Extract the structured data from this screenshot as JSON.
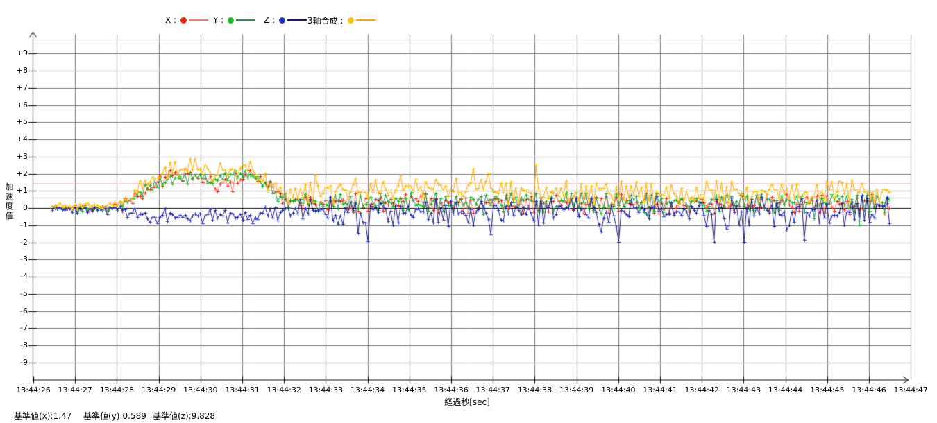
{
  "window": {
    "background": "#ffffff"
  },
  "legend": {
    "items": [
      {
        "label": "X :",
        "dot_color": "#f5220e",
        "line_color": "#f08068"
      },
      {
        "label": "Y :",
        "dot_color": "#10c020",
        "line_color": "#2e8b57"
      },
      {
        "label": "Z :",
        "dot_color": "#2430cc",
        "line_color": "#181880"
      },
      {
        "label": "3軸合成 :",
        "dot_color": "#ffc400",
        "line_color": "#ffa200"
      }
    ]
  },
  "axes": {
    "y_title": "加速度値",
    "x_title": "経過秒[sec]",
    "grid_color": "#787878",
    "axis_color": "#000000",
    "zero_line_color": "#000000"
  },
  "status_bar": {
    "items": [
      "基準値(x):1.47",
      "基準値(y):0.589",
      "基準値(z):9.828"
    ]
  },
  "chart_data": {
    "type": "line",
    "title": "",
    "xlabel": "経過秒[sec]",
    "ylabel": "加速度値",
    "ylim": [
      -10,
      10
    ],
    "xlim_seconds": [
      26,
      47
    ],
    "grid": true,
    "legend_position": "top",
    "y_ticks": [
      {
        "label": "+9",
        "value": 9
      },
      {
        "label": "+8",
        "value": 8
      },
      {
        "label": "+7",
        "value": 7
      },
      {
        "label": "+6",
        "value": 6
      },
      {
        "label": "+5",
        "value": 5
      },
      {
        "label": "+4",
        "value": 4
      },
      {
        "label": "+3",
        "value": 3
      },
      {
        "label": "+2",
        "value": 2
      },
      {
        "label": "+1",
        "value": 1
      },
      {
        "label": "0",
        "value": 0
      },
      {
        "label": "-1",
        "value": -1
      },
      {
        "label": "-2",
        "value": -2
      },
      {
        "label": "-3",
        "value": -3
      },
      {
        "label": "-4",
        "value": -4
      },
      {
        "label": "-5",
        "value": -5
      },
      {
        "label": "-6",
        "value": -6
      },
      {
        "label": "-7",
        "value": -7
      },
      {
        "label": "-8",
        "value": -8
      },
      {
        "label": "-9",
        "value": -9
      }
    ],
    "x_ticks": [
      {
        "label": "13:44:26",
        "sec": 26
      },
      {
        "label": "13:44:27",
        "sec": 27
      },
      {
        "label": "13:44:28",
        "sec": 28
      },
      {
        "label": "13:44:29",
        "sec": 29
      },
      {
        "label": "13:44:30",
        "sec": 30
      },
      {
        "label": "13:44:31",
        "sec": 31
      },
      {
        "label": "13:44:32",
        "sec": 32
      },
      {
        "label": "13:44:33",
        "sec": 33
      },
      {
        "label": "13:44:34",
        "sec": 34
      },
      {
        "label": "13:44:35",
        "sec": 35
      },
      {
        "label": "13:44:36",
        "sec": 36
      },
      {
        "label": "13:44:37",
        "sec": 37
      },
      {
        "label": "13:44:38",
        "sec": 38
      },
      {
        "label": "13:44:39",
        "sec": 39
      },
      {
        "label": "13:44:40",
        "sec": 40
      },
      {
        "label": "13:44:41",
        "sec": 41
      },
      {
        "label": "13:44:42",
        "sec": 42
      },
      {
        "label": "13:44:43",
        "sec": 43
      },
      {
        "label": "13:44:44",
        "sec": 44
      },
      {
        "label": "13:44:45",
        "sec": 45
      },
      {
        "label": "13:44:46",
        "sec": 46
      },
      {
        "label": "13:44:47",
        "sec": 47
      }
    ],
    "reference_lines": [
      {
        "name": "基準値(x)",
        "value": 1.47,
        "color": "#ffc0cb"
      },
      {
        "name": "基準値(y)",
        "value": 0.589,
        "color": "#98e08c"
      },
      {
        "name": "基準値(z)",
        "value": 9.828,
        "color": "#b2e0e6"
      }
    ],
    "sampling": {
      "start_sec": 26.45,
      "end_sec": 46.5,
      "interval_sec": 0.06,
      "noise_seed": 73911284
    },
    "series": [
      {
        "name": "X",
        "marker_color": "#f5220e",
        "line_color": "#f08068",
        "min": -1.0,
        "max": 2.35,
        "spike": {
          "prob": 0.035,
          "sign": -1
        },
        "envelope": [
          [
            26.0,
            0.02,
            0.1
          ],
          [
            27.9,
            0.02,
            0.12
          ],
          [
            28.3,
            0.45,
            0.2
          ],
          [
            28.8,
            1.25,
            0.3
          ],
          [
            29.3,
            1.85,
            0.3
          ],
          [
            30.0,
            1.9,
            0.3
          ],
          [
            30.4,
            1.15,
            0.3
          ],
          [
            30.8,
            1.8,
            0.3
          ],
          [
            31.3,
            1.9,
            0.3
          ],
          [
            31.7,
            1.2,
            0.3
          ],
          [
            32.1,
            0.3,
            0.35
          ],
          [
            33.0,
            0.3,
            0.4
          ],
          [
            46.5,
            0.22,
            0.42
          ]
        ]
      },
      {
        "name": "Y",
        "marker_color": "#10c020",
        "line_color": "#2e8b57",
        "min": -1.3,
        "max": 2.2,
        "spike": {
          "prob": 0.03,
          "sign": -1
        },
        "envelope": [
          [
            26.0,
            0.0,
            0.1
          ],
          [
            27.9,
            0.0,
            0.12
          ],
          [
            28.3,
            0.5,
            0.18
          ],
          [
            28.8,
            1.3,
            0.25
          ],
          [
            29.3,
            1.7,
            0.25
          ],
          [
            30.0,
            1.75,
            0.25
          ],
          [
            30.3,
            1.45,
            0.25
          ],
          [
            30.7,
            1.85,
            0.28
          ],
          [
            31.2,
            2.0,
            0.28
          ],
          [
            31.6,
            1.35,
            0.3
          ],
          [
            32.0,
            0.4,
            0.32
          ],
          [
            33.0,
            0.35,
            0.38
          ],
          [
            46.5,
            0.3,
            0.4
          ]
        ]
      },
      {
        "name": "Z",
        "marker_color": "#2430cc",
        "line_color": "#181880",
        "min": -2.5,
        "max": 0.95,
        "spike": {
          "prob": 0.07,
          "sign": -1
        },
        "envelope": [
          [
            26.0,
            -0.05,
            0.12
          ],
          [
            27.9,
            -0.05,
            0.15
          ],
          [
            28.4,
            -0.35,
            0.28
          ],
          [
            29.0,
            -0.5,
            0.33
          ],
          [
            31.0,
            -0.5,
            0.33
          ],
          [
            31.6,
            -0.35,
            0.4
          ],
          [
            32.2,
            -0.2,
            0.58
          ],
          [
            46.5,
            -0.15,
            0.62
          ]
        ]
      },
      {
        "name": "3軸合成",
        "marker_color": "#ffc400",
        "line_color": "#ffa200",
        "min": -0.15,
        "max": 3.05,
        "spike": {
          "prob": 0.05,
          "sign": 1
        },
        "envelope": [
          [
            26.0,
            0.12,
            0.1
          ],
          [
            27.9,
            0.12,
            0.12
          ],
          [
            28.3,
            0.55,
            0.2
          ],
          [
            28.8,
            1.6,
            0.3
          ],
          [
            29.3,
            2.3,
            0.35
          ],
          [
            30.0,
            2.45,
            0.35
          ],
          [
            30.3,
            1.95,
            0.3
          ],
          [
            30.6,
            2.35,
            0.35
          ],
          [
            31.1,
            2.5,
            0.35
          ],
          [
            31.5,
            1.7,
            0.3
          ],
          [
            31.9,
            0.75,
            0.35
          ],
          [
            32.6,
            0.85,
            0.45
          ],
          [
            33.6,
            1.1,
            0.5
          ],
          [
            34.6,
            1.2,
            0.5
          ],
          [
            36.6,
            1.1,
            0.5
          ],
          [
            37.6,
            0.9,
            0.5
          ],
          [
            46.5,
            0.9,
            0.5
          ]
        ]
      }
    ]
  }
}
